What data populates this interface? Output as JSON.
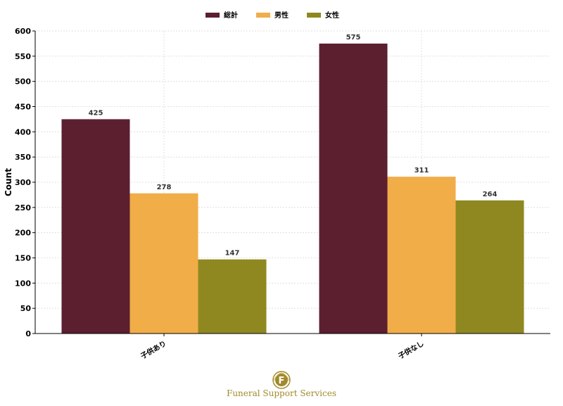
{
  "chart_data": {
    "type": "bar",
    "categories": [
      "子供あり",
      "子供なし"
    ],
    "series": [
      {
        "name": "総計",
        "values": [
          425,
          575
        ],
        "color": "#5b1f30"
      },
      {
        "name": "男性",
        "values": [
          278,
          311
        ],
        "color": "#f0ad48"
      },
      {
        "name": "女性",
        "values": [
          147,
          264
        ],
        "color": "#8f8820"
      }
    ],
    "title": "",
    "xlabel": "",
    "ylabel": "Count",
    "ylim": [
      0,
      600
    ],
    "yticks": [
      0,
      50,
      100,
      150,
      200,
      250,
      300,
      350,
      400,
      450,
      500,
      550,
      600
    ],
    "grid": true,
    "legend_position": "top-center",
    "data_labels": true
  },
  "logo": {
    "letter": "F",
    "caption": "Funeral Support Services",
    "color": "#a08a2c"
  }
}
